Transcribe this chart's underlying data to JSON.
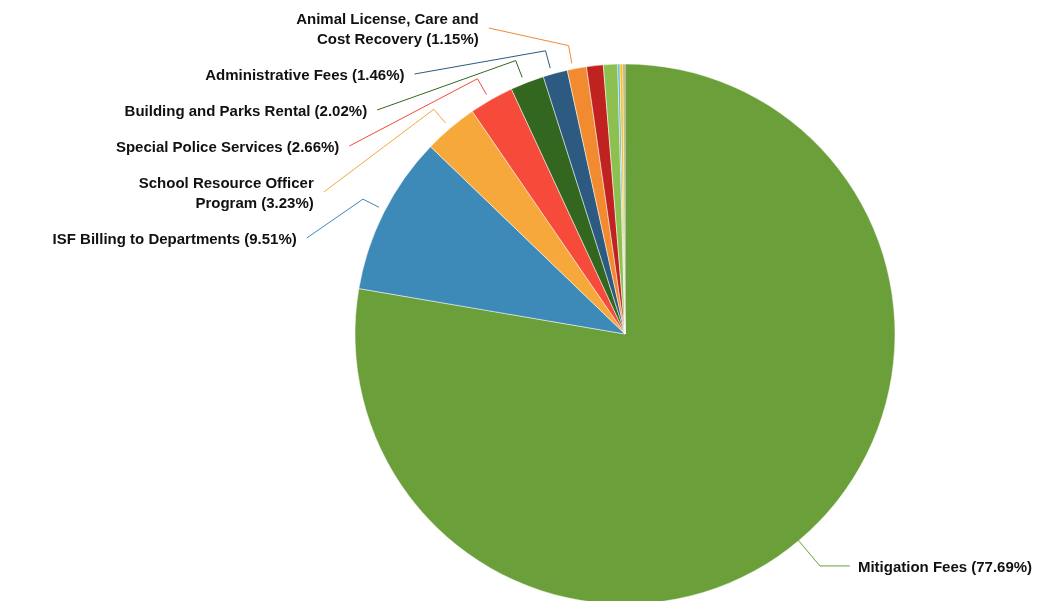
{
  "chart_data": {
    "type": "pie",
    "categories": [
      "Mitigation Fees (77.69%)",
      "ISF Billing to Departments (9.51%)",
      "School Resource Officer Program (3.23%)",
      "Special Police Services (2.66%)",
      "Building and Parks Rental (2.02%)",
      "Administrative Fees (1.46%)",
      "Animal License, Care and Cost Recovery (1.15%)",
      null,
      null,
      null,
      null,
      null
    ],
    "values": [
      77.69,
      9.51,
      3.23,
      2.66,
      2.02,
      1.46,
      1.15,
      1.0,
      0.85,
      0.13,
      0.18,
      0.12
    ],
    "colors": [
      "#6a9f3a",
      "#3d89b8",
      "#f7a83a",
      "#f64a3a",
      "#33661f",
      "#2c5a80",
      "#f28a30",
      "#c0231f",
      "#8cc152",
      "#5aaee0",
      "#f5c518",
      "#b9a07a"
    ]
  }
}
